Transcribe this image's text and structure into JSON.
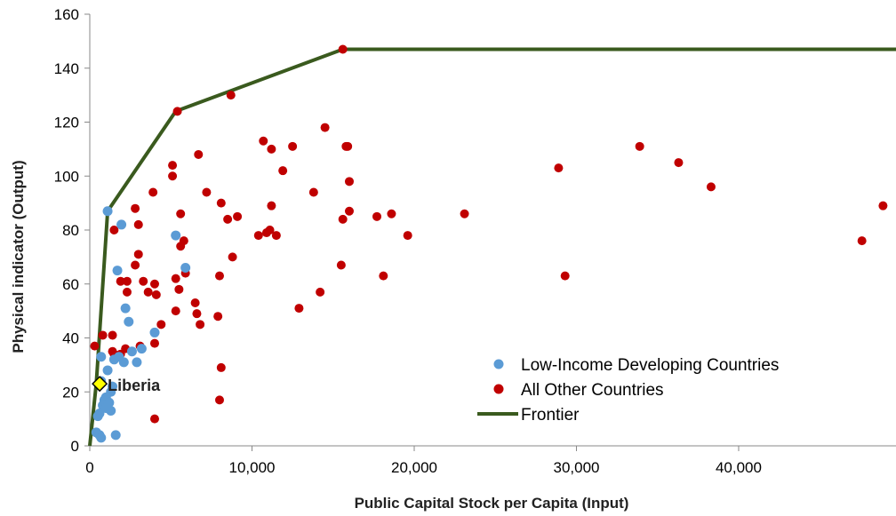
{
  "chart_data": {
    "type": "scatter",
    "title": "",
    "xlabel": "Public Capital Stock per Capita (Input)",
    "ylabel": "Physical indicator (Output)",
    "xlim": [
      0,
      50000
    ],
    "ylim": [
      0,
      160
    ],
    "x_ticks": [
      0,
      10000,
      20000,
      30000,
      40000
    ],
    "x_tick_labels": [
      "0",
      "10,000",
      "20,000",
      "30,000",
      "40,000"
    ],
    "y_ticks": [
      0,
      20,
      40,
      60,
      80,
      100,
      120,
      140,
      160
    ],
    "y_tick_labels": [
      "0",
      "20",
      "40",
      "60",
      "80",
      "100",
      "120",
      "140",
      "160"
    ],
    "legend_position": "bottom-right",
    "colors": {
      "low_income": "#5b9bd5",
      "other": "#c00000",
      "frontier": "#3a5a1e",
      "liberia_marker": "#ffff00"
    },
    "series": [
      {
        "name": "Low-Income Developing Countries",
        "kind": "scatter",
        "color": "#5b9bd5",
        "points": [
          [
            1100,
            87
          ],
          [
            1950,
            82
          ],
          [
            1700,
            65
          ],
          [
            5300,
            78
          ],
          [
            5900,
            66
          ],
          [
            2200,
            51
          ],
          [
            2400,
            46
          ],
          [
            4000,
            42
          ],
          [
            3200,
            36
          ],
          [
            2100,
            31
          ],
          [
            2900,
            31
          ],
          [
            1100,
            28
          ],
          [
            700,
            33
          ],
          [
            1500,
            32
          ],
          [
            1300,
            20
          ],
          [
            1400,
            22
          ],
          [
            1000,
            18
          ],
          [
            900,
            17
          ],
          [
            1200,
            16
          ],
          [
            800,
            15
          ],
          [
            1300,
            13
          ],
          [
            600,
            12
          ],
          [
            500,
            11
          ],
          [
            400,
            5
          ],
          [
            600,
            4
          ],
          [
            700,
            3
          ],
          [
            1600,
            4
          ],
          [
            1000,
            14
          ],
          [
            700,
            24
          ],
          [
            1800,
            33
          ],
          [
            2600,
            35
          ]
        ]
      },
      {
        "name": "All Other Countries",
        "kind": "scatter",
        "color": "#c00000",
        "points": [
          [
            15600,
            147
          ],
          [
            5400,
            124
          ],
          [
            8700,
            130
          ],
          [
            14500,
            118
          ],
          [
            10700,
            113
          ],
          [
            11200,
            110
          ],
          [
            12500,
            111
          ],
          [
            15900,
            111
          ],
          [
            15800,
            111
          ],
          [
            33900,
            111
          ],
          [
            6700,
            108
          ],
          [
            5100,
            104
          ],
          [
            5100,
            100
          ],
          [
            11900,
            102
          ],
          [
            36300,
            105
          ],
          [
            28900,
            103
          ],
          [
            3900,
            94
          ],
          [
            7200,
            94
          ],
          [
            13800,
            94
          ],
          [
            38300,
            96
          ],
          [
            16000,
            98
          ],
          [
            5600,
            86
          ],
          [
            2800,
            88
          ],
          [
            8100,
            90
          ],
          [
            8500,
            84
          ],
          [
            9100,
            85
          ],
          [
            11200,
            89
          ],
          [
            15600,
            84
          ],
          [
            16000,
            87
          ],
          [
            17700,
            85
          ],
          [
            18600,
            86
          ],
          [
            23100,
            86
          ],
          [
            48900,
            89
          ],
          [
            1500,
            80
          ],
          [
            3000,
            82
          ],
          [
            5800,
            76
          ],
          [
            5600,
            74
          ],
          [
            10400,
            78
          ],
          [
            10900,
            79
          ],
          [
            11100,
            80
          ],
          [
            11500,
            78
          ],
          [
            19600,
            78
          ],
          [
            47600,
            76
          ],
          [
            3000,
            71
          ],
          [
            2800,
            67
          ],
          [
            1900,
            61
          ],
          [
            2300,
            61
          ],
          [
            3300,
            61
          ],
          [
            3600,
            57
          ],
          [
            4000,
            60
          ],
          [
            2300,
            57
          ],
          [
            4100,
            56
          ],
          [
            5300,
            62
          ],
          [
            5500,
            58
          ],
          [
            5900,
            64
          ],
          [
            8000,
            63
          ],
          [
            8800,
            70
          ],
          [
            14200,
            57
          ],
          [
            15500,
            67
          ],
          [
            18100,
            63
          ],
          [
            29300,
            63
          ],
          [
            6500,
            53
          ],
          [
            6600,
            49
          ],
          [
            6800,
            45
          ],
          [
            5300,
            50
          ],
          [
            7900,
            48
          ],
          [
            12900,
            51
          ],
          [
            4400,
            45
          ],
          [
            3100,
            37
          ],
          [
            4000,
            38
          ],
          [
            2200,
            36
          ],
          [
            1900,
            34
          ],
          [
            1400,
            35
          ],
          [
            1500,
            34
          ],
          [
            300,
            37
          ],
          [
            800,
            41
          ],
          [
            1400,
            41
          ],
          [
            8100,
            29
          ],
          [
            8000,
            17
          ],
          [
            4000,
            10
          ]
        ]
      },
      {
        "name": "Frontier",
        "kind": "line",
        "color": "#3a5a1e",
        "points": [
          [
            0,
            0
          ],
          [
            400,
            23
          ],
          [
            1100,
            87
          ],
          [
            5300,
            124
          ],
          [
            15600,
            147
          ],
          [
            50000,
            147
          ]
        ]
      }
    ],
    "annotations": [
      {
        "label": "Liberia",
        "x": 500,
        "y": 23
      }
    ]
  }
}
